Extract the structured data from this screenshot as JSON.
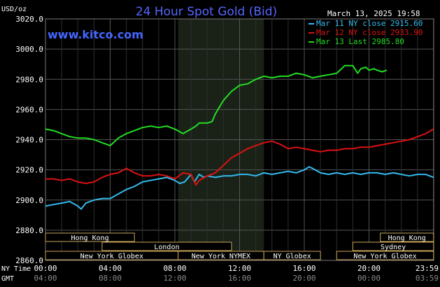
{
  "chart_data": {
    "type": "line",
    "title": "24 Hour Spot Gold (Bid)",
    "watermark": "www.kitco.com",
    "timestamp": "March 13, 2025 19:58",
    "ylabel": "USD/oz",
    "ylim": [
      2860,
      3020
    ],
    "yticks": [
      "3020.0",
      "3000.0",
      "2980.0",
      "2960.0",
      "2940.0",
      "2920.0",
      "2900.0",
      "2880.0",
      "2860.0"
    ],
    "xlim": [
      0,
      24
    ],
    "ny_time_label": "NY Time",
    "gmt_label": "GMT",
    "ny_ticks": [
      "00:00",
      "04:00",
      "08:00",
      "12:00",
      "16:00",
      "20:00",
      "23:59"
    ],
    "gmt_ticks": [
      "04:00",
      "08:00",
      "12:00",
      "16:00",
      "20:00",
      "00:00",
      "03:59"
    ],
    "shaded_session": [
      8.2,
      13.5
    ],
    "grid": true,
    "legend": "top-right",
    "series": [
      {
        "name": "Mar 11 NY close 2915.60",
        "color": "#33bbee",
        "x": [
          0,
          0.5,
          1,
          1.5,
          2,
          2.2,
          2.5,
          3,
          3.5,
          4,
          4.5,
          5,
          5.5,
          6,
          6.5,
          7,
          7.5,
          8,
          8.3,
          8.6,
          9,
          9.2,
          9.5,
          9.8,
          10,
          10.5,
          11,
          11.5,
          12,
          12.5,
          13,
          13.5,
          14,
          14.5,
          15,
          15.5,
          16,
          16.3,
          16.5,
          17,
          17.5,
          18,
          18.5,
          19,
          19.5,
          20,
          20.5,
          21,
          21.5,
          22,
          22.5,
          23,
          23.5,
          23.99
        ],
        "values": [
          2896,
          2897,
          2898,
          2899,
          2896,
          2894,
          2898,
          2900,
          2901,
          2901,
          2904,
          2907,
          2909,
          2912,
          2913,
          2914,
          2915,
          2913,
          2911,
          2912,
          2917,
          2912,
          2917,
          2915,
          2916,
          2915,
          2916,
          2916,
          2917,
          2917,
          2916,
          2918,
          2917,
          2918,
          2919,
          2918,
          2920,
          2922,
          2921,
          2918,
          2917,
          2918,
          2917,
          2918,
          2917,
          2918,
          2918,
          2917,
          2918,
          2917,
          2916,
          2917,
          2917,
          2915
        ]
      },
      {
        "name": "Mar 12 NY close 2933.90",
        "color": "#dd1111",
        "x": [
          0,
          0.5,
          1,
          1.5,
          2,
          2.5,
          3,
          3.5,
          4,
          4.5,
          5,
          5.5,
          6,
          6.5,
          7,
          7.5,
          8,
          8.5,
          9,
          9.3,
          9.5,
          10,
          10.5,
          11,
          11.5,
          12,
          12.5,
          13,
          13.5,
          14,
          14.5,
          15,
          15.5,
          16,
          16.5,
          17,
          17.5,
          18,
          18.5,
          19,
          19.5,
          20,
          20.5,
          21,
          21.5,
          22,
          22.5,
          23,
          23.5,
          23.99
        ],
        "values": [
          2914,
          2914,
          2913,
          2914,
          2912,
          2911,
          2912,
          2915,
          2917,
          2918,
          2921,
          2918,
          2916,
          2916,
          2917,
          2916,
          2914,
          2918,
          2917,
          2910,
          2913,
          2916,
          2918,
          2923,
          2928,
          2931,
          2934,
          2936,
          2938,
          2939,
          2937,
          2934,
          2935,
          2934,
          2933,
          2932,
          2933,
          2933,
          2934,
          2934,
          2935,
          2935,
          2936,
          2937,
          2938,
          2939,
          2940,
          2942,
          2944,
          2947
        ]
      },
      {
        "name": "Mar 13 Last 2985.80",
        "color": "#22dd22",
        "x": [
          0,
          0.5,
          1,
          1.5,
          2,
          2.5,
          3,
          3.5,
          4,
          4.5,
          5,
          5.5,
          6,
          6.5,
          7,
          7.5,
          8,
          8.5,
          9,
          9.3,
          9.5,
          10,
          10.3,
          10.5,
          11,
          11.5,
          12,
          12.5,
          13,
          13.5,
          14,
          14.5,
          15,
          15.5,
          16,
          16.5,
          17,
          17.5,
          18,
          18.5,
          18.8,
          19,
          19.3,
          19.5,
          19.8,
          20,
          20.3,
          20.5,
          20.8,
          21.1
        ],
        "values": [
          2947,
          2946,
          2944,
          2942,
          2941,
          2941,
          2940,
          2938,
          2936,
          2941,
          2944,
          2946,
          2948,
          2949,
          2948,
          2949,
          2947,
          2944,
          2947,
          2949,
          2951,
          2951,
          2952,
          2957,
          2966,
          2972,
          2976,
          2977,
          2980,
          2982,
          2981,
          2982,
          2982,
          2984,
          2983,
          2981,
          2982,
          2983,
          2984,
          2989,
          2989,
          2989,
          2984,
          2987,
          2988,
          2986,
          2987,
          2986,
          2985,
          2986
        ]
      }
    ],
    "sessions": [
      {
        "label": "Hong Kong",
        "start": 0,
        "end": 5.5,
        "row": 0
      },
      {
        "label": "Hong Kong",
        "start": 20.7,
        "end": 23.99,
        "row": 0
      },
      {
        "label": "London",
        "start": 3.5,
        "end": 11.5,
        "row": 1
      },
      {
        "label": "Sydney",
        "start": 19.0,
        "end": 23.99,
        "row": 1
      },
      {
        "label": "New York Globex",
        "start": 0,
        "end": 8.2,
        "row": 2
      },
      {
        "label": "New York NYMEX",
        "start": 8.2,
        "end": 13.5,
        "row": 2
      },
      {
        "label": "NY Globex",
        "start": 13.5,
        "end": 17.0,
        "row": 2
      },
      {
        "label": "New York Globex",
        "start": 18.0,
        "end": 23.99,
        "row": 2
      }
    ]
  }
}
